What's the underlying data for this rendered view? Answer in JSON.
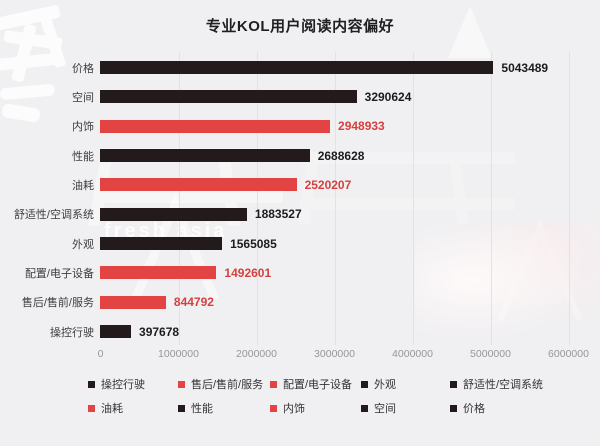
{
  "watermark": {
    "text": "fresh asia"
  },
  "chart_data": {
    "type": "bar",
    "orientation": "horizontal",
    "title": "专业KOL用户阅读内容偏好",
    "categories": [
      "价格",
      "空间",
      "内饰",
      "性能",
      "油耗",
      "舒适性/空调系统",
      "外观",
      "配置/电子设备",
      "售后/售前/服务",
      "操控行驶"
    ],
    "values": [
      5043489,
      3290624,
      2948933,
      2688628,
      2520207,
      1883527,
      1565085,
      1492601,
      844792,
      397678
    ],
    "bar_colors": [
      "black",
      "black",
      "red",
      "black",
      "red",
      "black",
      "black",
      "red",
      "red",
      "black"
    ],
    "value_labels": [
      "5043489",
      "3290624",
      "2948933",
      "2688628",
      "2520207",
      "1883527",
      "1565085",
      "1492601",
      "844792",
      "397678"
    ],
    "xlabel": "",
    "ylabel": "",
    "xlim": [
      0,
      6000000
    ],
    "x_ticks": [
      0,
      1000000,
      2000000,
      3000000,
      4000000,
      5000000,
      6000000
    ],
    "x_tick_labels": [
      "0",
      "1000000",
      "2000000",
      "3000000",
      "4000000",
      "5000000",
      "6000000"
    ],
    "grid": true,
    "legend_position": "bottom",
    "legend": [
      {
        "label": "操控行驶",
        "color": "black"
      },
      {
        "label": "售后/售前/服务",
        "color": "red"
      },
      {
        "label": "配置/电子设备",
        "color": "red"
      },
      {
        "label": "外观",
        "color": "black"
      },
      {
        "label": "舒适性/空调系统",
        "color": "black"
      },
      {
        "label": "油耗",
        "color": "red"
      },
      {
        "label": "性能",
        "color": "black"
      },
      {
        "label": "内饰",
        "color": "red"
      },
      {
        "label": "空间",
        "color": "black"
      },
      {
        "label": "价格",
        "color": "black"
      }
    ],
    "palette": {
      "black": "#231a1c",
      "red": "#e24444"
    },
    "value_text_colors": {
      "black": "#1c1c1c",
      "red": "#d8403f"
    }
  }
}
